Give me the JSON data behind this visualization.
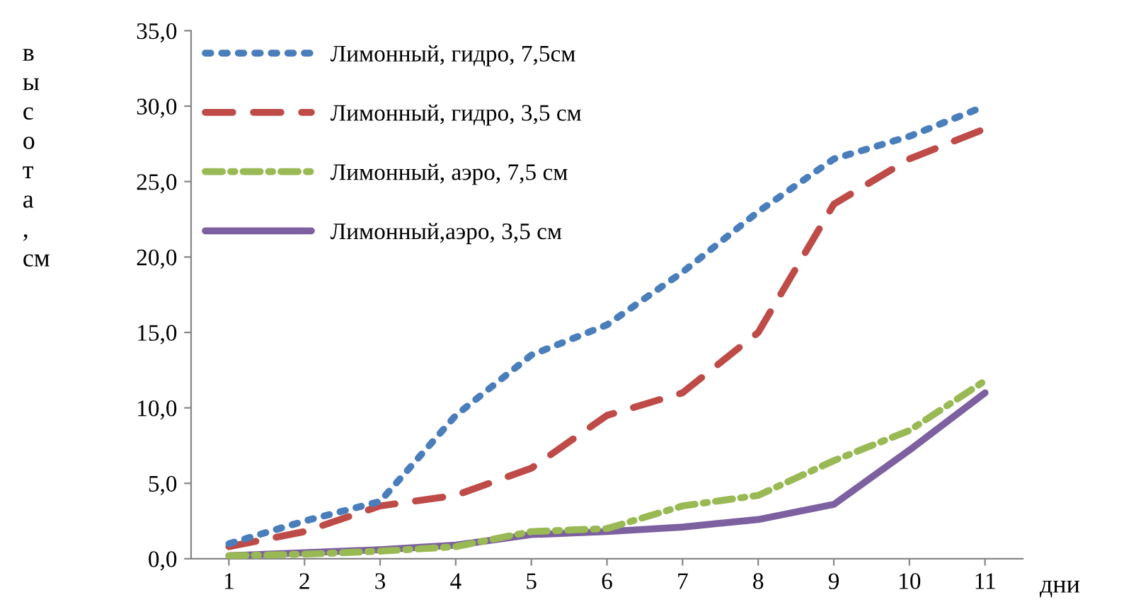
{
  "chart_data": {
    "type": "line",
    "xlabel": "дни",
    "ylabel": "высота, см",
    "categories": [
      "1",
      "2",
      "3",
      "4",
      "5",
      "6",
      "7",
      "8",
      "9",
      "10",
      "11"
    ],
    "ylim": [
      0,
      35
    ],
    "yticks": [
      {
        "value": 0,
        "label": "0,0"
      },
      {
        "value": 5,
        "label": "5,0"
      },
      {
        "value": 10,
        "label": "10,0"
      },
      {
        "value": 15,
        "label": "15,0"
      },
      {
        "value": 20,
        "label": "20,0"
      },
      {
        "value": 25,
        "label": "25,0"
      },
      {
        "value": 30,
        "label": "30,0"
      },
      {
        "value": 35,
        "label": "35,0"
      }
    ],
    "grid": false,
    "legend": "top left",
    "marker": "none",
    "series": [
      {
        "name": "Лимонный, гидро, 7,5см",
        "color": "#4a7ebb",
        "line_style": "dotted",
        "values": [
          1.0,
          2.5,
          3.8,
          9.5,
          13.5,
          15.5,
          19.0,
          23.0,
          26.5,
          28.0,
          30.0
        ]
      },
      {
        "name": "Лимонный, гидро, 3,5 см",
        "color": "#be4b48",
        "line_style": "dashed",
        "values": [
          0.8,
          1.8,
          3.5,
          4.2,
          6.0,
          9.5,
          11.0,
          15.0,
          23.5,
          26.5,
          28.5
        ]
      },
      {
        "name": "Лимонный, аэро, 7,5 см",
        "color": "#98b954",
        "line_style": "dashdot",
        "values": [
          0.2,
          0.3,
          0.5,
          0.8,
          1.8,
          2.0,
          3.5,
          4.2,
          6.5,
          8.5,
          11.8
        ]
      },
      {
        "name": "Лимонный,аэро, 3,5 см",
        "color": "#7d60a0",
        "line_style": "solid",
        "values": [
          0.2,
          0.4,
          0.6,
          0.9,
          1.6,
          1.8,
          2.1,
          2.6,
          3.6,
          7.2,
          11.0
        ]
      }
    ]
  }
}
